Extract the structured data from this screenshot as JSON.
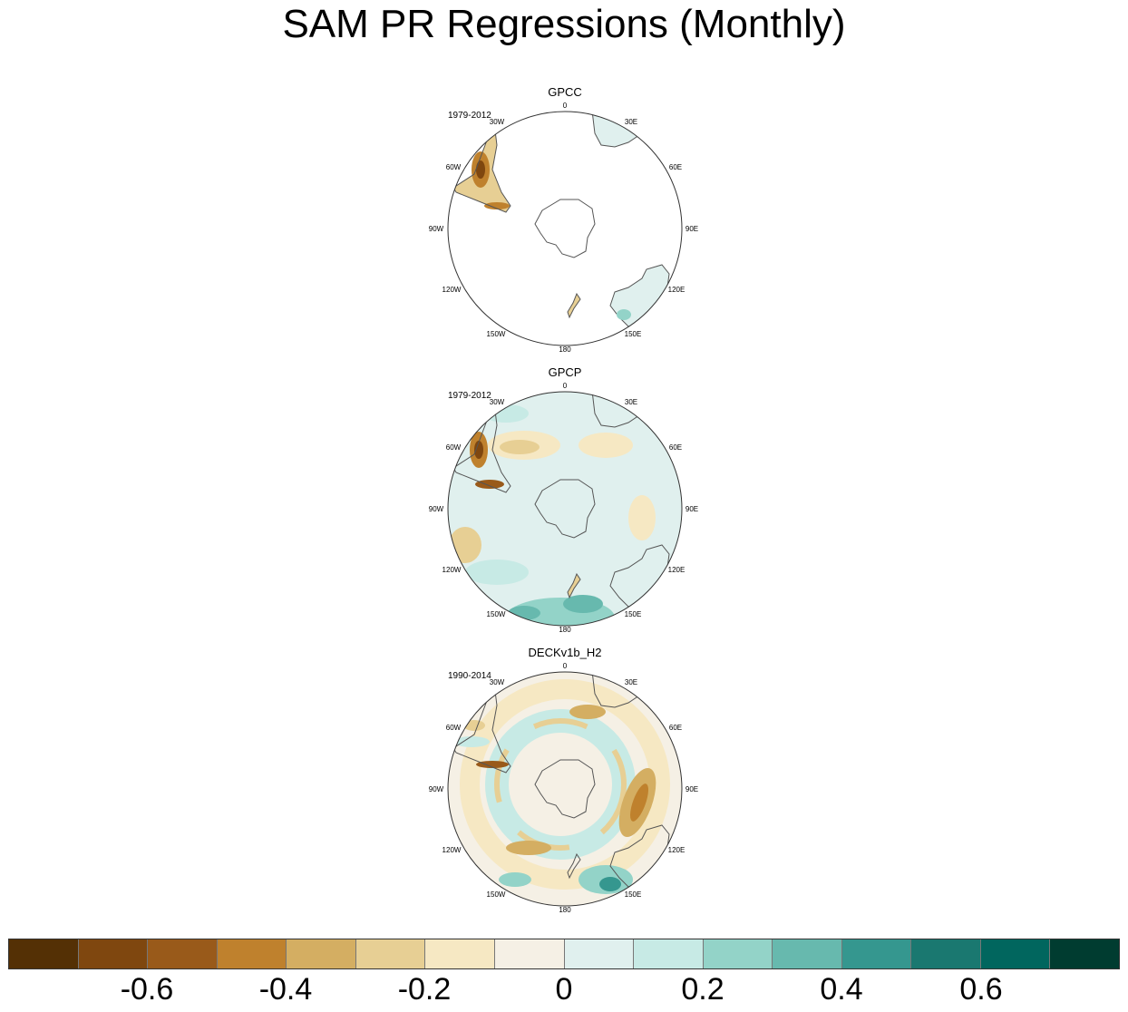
{
  "title": "SAM PR Regressions (Monthly)",
  "panels": [
    {
      "name": "GPCC",
      "period": "1979-2012"
    },
    {
      "name": "GPCP",
      "period": "1979-2012"
    },
    {
      "name": "DECKv1b_H2",
      "period": "1990-2014"
    }
  ],
  "lon_labels": [
    "0",
    "30E",
    "60E",
    "90E",
    "120E",
    "150E",
    "180",
    "150W",
    "120W",
    "90W",
    "60W",
    "30W"
  ],
  "colorbar": {
    "colors": [
      "#543005",
      "#7f470f",
      "#995a1a",
      "#bf812d",
      "#d4ae62",
      "#e7cf94",
      "#f6e8c3",
      "#f5f0e5",
      "#e0f0ee",
      "#c7eae5",
      "#93d3c8",
      "#67b9ae",
      "#35978f",
      "#1a7870",
      "#01665e",
      "#003c30"
    ],
    "ticks": [
      "-0.6",
      "-0.4",
      "-0.2",
      "0",
      "0.2",
      "0.4",
      "0.6"
    ]
  },
  "legend": {
    "colors_primary": {
      "brown": "#8c510a",
      "teal": "#01665e"
    }
  }
}
